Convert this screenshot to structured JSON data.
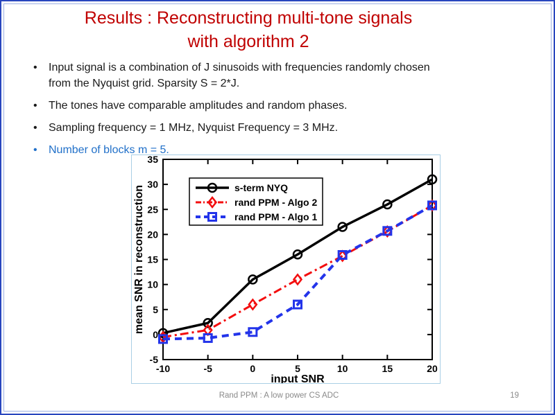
{
  "slide": {
    "title": {
      "line1": "Results : Reconstructing multi-tone signals",
      "line2": "with algorithm 2"
    },
    "bullet_char": "•",
    "bullets": [
      {
        "lines": [
          "Input signal is a combination of J sinusoids with frequencies randomly chosen",
          "from the Nyquist grid.  Sparsity S = 2*J."
        ],
        "highlighted": false
      },
      {
        "lines": [
          "The tones have comparable amplitudes and random phases."
        ],
        "highlighted": false
      },
      {
        "lines": [
          "Sampling frequency = 1 MHz, Nyquist Frequency = 3 MHz."
        ],
        "highlighted": false
      },
      {
        "lines": [
          "Number of blocks m = 5."
        ],
        "highlighted": true
      }
    ],
    "footer": {
      "text": "Rand PPM : A low power CS ADC",
      "page_number": "19"
    }
  },
  "colors": {
    "title_red": "#c00000",
    "body_text": "#1a1a1a",
    "highlight_blue": "#2170c9",
    "border_outer_blue": "#2846be",
    "border_inner_blue": "#9cb0e4",
    "chart_frame_blue": "#a9cfe5",
    "footer_gray": "#8a8a8a"
  },
  "chart_data": {
    "type": "line",
    "title": "",
    "xlabel": "input SNR",
    "ylabel": "mean SNR in reconstruction",
    "xlim": [
      -10,
      20
    ],
    "ylim": [
      -5,
      35
    ],
    "xticks": [
      -10,
      -5,
      0,
      5,
      10,
      15,
      20
    ],
    "yticks": [
      -5,
      0,
      5,
      10,
      15,
      20,
      25,
      30,
      35
    ],
    "grid": false,
    "legend_position": "upper-left",
    "x": [
      -10,
      -5,
      0,
      5,
      10,
      15,
      20
    ],
    "series": [
      {
        "name": "s-term NYQ",
        "color": "#000000",
        "line_style": "solid",
        "line_width": 3.5,
        "marker": "circle",
        "values": [
          0.3,
          2.3,
          11,
          16,
          21.5,
          26,
          31
        ]
      },
      {
        "name": "rand PPM - Algo 2",
        "color": "#f30d0e",
        "line_style": "dash-dot",
        "line_width": 3,
        "marker": "diamond",
        "values": [
          -0.5,
          0.9,
          6,
          11,
          15.7,
          20.6,
          25.8
        ]
      },
      {
        "name": "rand PPM - Algo 1",
        "color": "#2334ea",
        "line_style": "dashed",
        "line_width": 4,
        "marker": "square",
        "values": [
          -0.9,
          -0.7,
          0.5,
          6,
          15.9,
          20.7,
          25.8
        ]
      }
    ]
  }
}
